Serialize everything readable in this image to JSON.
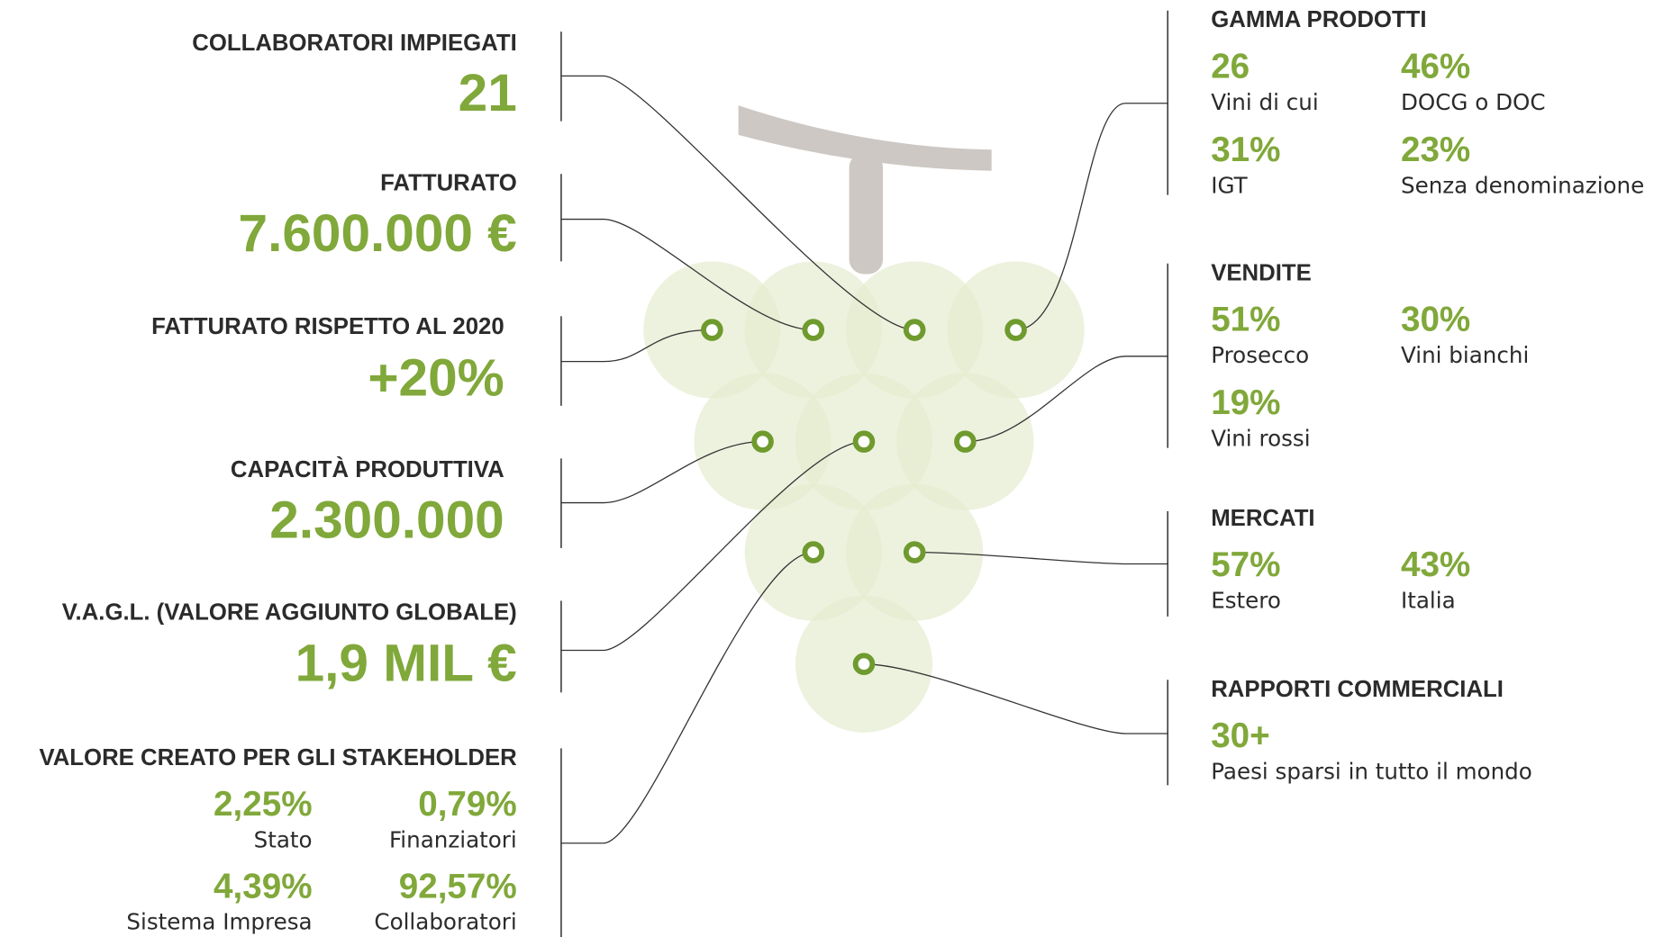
{
  "left": [
    {
      "title": "COLLABORATORI IMPIEGATI",
      "value": "21"
    },
    {
      "title": "FATTURATO",
      "value": "7.600.000 €"
    },
    {
      "title": "FATTURATO RISPETTO AL 2020",
      "value": "+20%"
    },
    {
      "title": "CAPACITÀ PRODUTTIVA",
      "value": "2.300.000"
    },
    {
      "title": "V.A.G.L. (VALORE AGGIUNTO GLOBALE)",
      "value": "1,9 MIL €"
    }
  ],
  "stakeholder": {
    "title": "VALORE CREATO PER GLI STAKEHOLDER",
    "items": [
      {
        "value": "2,25%",
        "label": "Stato"
      },
      {
        "value": "0,79%",
        "label": "Finanziatori"
      },
      {
        "value": "4,39%",
        "label": "Sistema Impresa"
      },
      {
        "value": "92,57%",
        "label": "Collaboratori"
      }
    ]
  },
  "right": [
    {
      "title": "GAMMA PRODOTTI",
      "items": [
        {
          "value": "26",
          "label": "Vini di cui"
        },
        {
          "value": "46%",
          "label": "DOCG o DOC"
        },
        {
          "value": "31%",
          "label": "IGT"
        },
        {
          "value": "23%",
          "label": "Senza denominazione"
        }
      ]
    },
    {
      "title": "VENDITE",
      "items": [
        {
          "value": "51%",
          "label": "Prosecco"
        },
        {
          "value": "30%",
          "label": "Vini bianchi"
        },
        {
          "value": "19%",
          "label": "Vini rossi"
        }
      ]
    },
    {
      "title": "MERCATI",
      "items": [
        {
          "value": "57%",
          "label": "Estero"
        },
        {
          "value": "43%",
          "label": "Italia"
        }
      ]
    },
    {
      "title": "RAPPORTI COMMERCIALI",
      "items": [
        {
          "value": "30+",
          "label": "Paesi sparsi in tutto il mondo"
        }
      ]
    }
  ]
}
